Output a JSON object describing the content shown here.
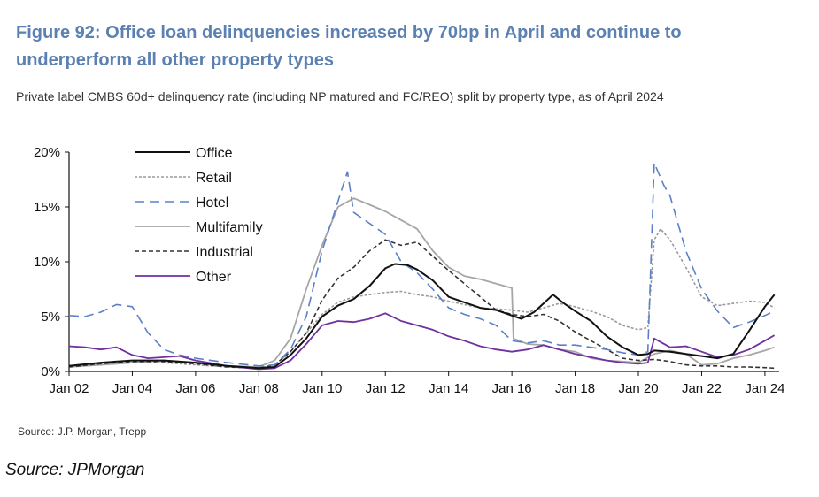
{
  "header": {
    "title": "Figure 92: Office loan delinquencies increased by 70bp in April and continue to underperform all other property types",
    "subtitle": "Private label CMBS 60d+ delinquency rate (including NP matured and FC/REO) split by property type, as of April 2024"
  },
  "footer": {
    "source_primary": "Source: J.P. Morgan, Trepp",
    "source_secondary": "Source: JPMorgan"
  },
  "chart_data": {
    "type": "line",
    "ylim": [
      0,
      20
    ],
    "xlim": [
      2002.0,
      2024.45
    ],
    "y_ticks": [
      {
        "value": 0,
        "label": "0%"
      },
      {
        "value": 5,
        "label": "5%"
      },
      {
        "value": 10,
        "label": "10%"
      },
      {
        "value": 15,
        "label": "15%"
      },
      {
        "value": 20,
        "label": "20%"
      }
    ],
    "x_ticks": [
      {
        "value": 2002,
        "label": "Jan 02"
      },
      {
        "value": 2004,
        "label": "Jan 04"
      },
      {
        "value": 2006,
        "label": "Jan 06"
      },
      {
        "value": 2008,
        "label": "Jan 08"
      },
      {
        "value": 2010,
        "label": "Jan 10"
      },
      {
        "value": 2012,
        "label": "Jan 12"
      },
      {
        "value": 2014,
        "label": "Jan 14"
      },
      {
        "value": 2016,
        "label": "Jan 16"
      },
      {
        "value": 2018,
        "label": "Jan 18"
      },
      {
        "value": 2020,
        "label": "Jan 20"
      },
      {
        "value": 2022,
        "label": "Jan 22"
      },
      {
        "value": 2024,
        "label": "Jan 24"
      }
    ],
    "grid": false,
    "legend_position": "top-left",
    "series": [
      {
        "name": "Office",
        "color": "#111111",
        "dash": "solid",
        "points": [
          [
            2002,
            0.5
          ],
          [
            2003,
            0.8
          ],
          [
            2004,
            1.0
          ],
          [
            2005,
            1.0
          ],
          [
            2006,
            0.8
          ],
          [
            2007,
            0.5
          ],
          [
            2008,
            0.3
          ],
          [
            2008.5,
            0.4
          ],
          [
            2009,
            1.5
          ],
          [
            2009.5,
            3.0
          ],
          [
            2010,
            5.0
          ],
          [
            2010.5,
            6.0
          ],
          [
            2011,
            6.6
          ],
          [
            2011.5,
            7.8
          ],
          [
            2012,
            9.4
          ],
          [
            2012.3,
            9.8
          ],
          [
            2012.7,
            9.7
          ],
          [
            2013,
            9.3
          ],
          [
            2013.5,
            8.3
          ],
          [
            2014,
            6.8
          ],
          [
            2014.5,
            6.3
          ],
          [
            2015,
            5.8
          ],
          [
            2015.5,
            5.6
          ],
          [
            2016,
            5.1
          ],
          [
            2016.3,
            4.8
          ],
          [
            2016.7,
            5.4
          ],
          [
            2017,
            6.2
          ],
          [
            2017.3,
            7.0
          ],
          [
            2017.6,
            6.3
          ],
          [
            2018,
            5.5
          ],
          [
            2018.5,
            4.6
          ],
          [
            2019,
            3.2
          ],
          [
            2019.5,
            2.2
          ],
          [
            2020,
            1.5
          ],
          [
            2020.3,
            1.6
          ],
          [
            2020.5,
            1.9
          ],
          [
            2021,
            1.8
          ],
          [
            2021.5,
            1.6
          ],
          [
            2022,
            1.4
          ],
          [
            2022.5,
            1.2
          ],
          [
            2023,
            1.6
          ],
          [
            2023.5,
            3.7
          ],
          [
            2024,
            5.9
          ],
          [
            2024.3,
            7.0
          ]
        ]
      },
      {
        "name": "Retail",
        "color": "#9a9a9a",
        "dash": "dotted",
        "points": [
          [
            2002,
            0.5
          ],
          [
            2003,
            0.7
          ],
          [
            2004,
            0.8
          ],
          [
            2005,
            0.8
          ],
          [
            2006,
            0.6
          ],
          [
            2007,
            0.4
          ],
          [
            2008,
            0.3
          ],
          [
            2008.5,
            0.6
          ],
          [
            2009,
            1.8
          ],
          [
            2009.5,
            3.5
          ],
          [
            2010,
            5.2
          ],
          [
            2010.5,
            6.3
          ],
          [
            2011,
            6.8
          ],
          [
            2011.5,
            7.0
          ],
          [
            2012,
            7.2
          ],
          [
            2012.5,
            7.3
          ],
          [
            2013,
            7.0
          ],
          [
            2013.5,
            6.8
          ],
          [
            2014,
            6.4
          ],
          [
            2014.5,
            6.1
          ],
          [
            2015,
            5.8
          ],
          [
            2015.5,
            5.7
          ],
          [
            2016,
            5.6
          ],
          [
            2016.5,
            5.4
          ],
          [
            2017,
            5.8
          ],
          [
            2017.5,
            6.2
          ],
          [
            2018,
            5.9
          ],
          [
            2018.5,
            5.5
          ],
          [
            2019,
            5.0
          ],
          [
            2019.5,
            4.2
          ],
          [
            2020,
            3.8
          ],
          [
            2020.3,
            4.0
          ],
          [
            2020.5,
            12.0
          ],
          [
            2020.7,
            13.0
          ],
          [
            2021,
            12.0
          ],
          [
            2021.5,
            9.5
          ],
          [
            2022,
            6.8
          ],
          [
            2022.5,
            6.0
          ],
          [
            2023,
            6.2
          ],
          [
            2023.5,
            6.4
          ],
          [
            2024,
            6.3
          ],
          [
            2024.3,
            5.8
          ]
        ]
      },
      {
        "name": "Hotel",
        "color": "#5b80c8",
        "dash": "longdash",
        "points": [
          [
            2002,
            5.1
          ],
          [
            2002.5,
            5.0
          ],
          [
            2003,
            5.4
          ],
          [
            2003.5,
            6.1
          ],
          [
            2004,
            5.9
          ],
          [
            2004.5,
            3.5
          ],
          [
            2005,
            2.0
          ],
          [
            2005.5,
            1.5
          ],
          [
            2006,
            1.2
          ],
          [
            2007,
            0.8
          ],
          [
            2008,
            0.5
          ],
          [
            2008.5,
            0.6
          ],
          [
            2009,
            2.0
          ],
          [
            2009.5,
            5.0
          ],
          [
            2010,
            11.0
          ],
          [
            2010.5,
            15.5
          ],
          [
            2010.8,
            18.2
          ],
          [
            2011,
            14.5
          ],
          [
            2011.5,
            13.5
          ],
          [
            2012,
            12.5
          ],
          [
            2012.5,
            10.0
          ],
          [
            2013,
            9.0
          ],
          [
            2013.5,
            7.5
          ],
          [
            2014,
            5.8
          ],
          [
            2014.5,
            5.2
          ],
          [
            2015,
            4.8
          ],
          [
            2015.5,
            4.2
          ],
          [
            2016,
            2.8
          ],
          [
            2016.5,
            2.6
          ],
          [
            2017,
            2.8
          ],
          [
            2017.5,
            2.4
          ],
          [
            2018,
            2.4
          ],
          [
            2018.5,
            2.2
          ],
          [
            2019,
            2.0
          ],
          [
            2019.5,
            1.7
          ],
          [
            2020,
            1.5
          ],
          [
            2020.3,
            1.8
          ],
          [
            2020.5,
            19.0
          ],
          [
            2020.8,
            17.0
          ],
          [
            2021,
            16.0
          ],
          [
            2021.5,
            11.0
          ],
          [
            2022,
            7.5
          ],
          [
            2022.5,
            5.5
          ],
          [
            2023,
            4.0
          ],
          [
            2023.5,
            4.5
          ],
          [
            2024,
            5.1
          ],
          [
            2024.3,
            5.5
          ]
        ]
      },
      {
        "name": "Multifamily",
        "color": "#a6a6a6",
        "dash": "solid",
        "points": [
          [
            2002,
            0.4
          ],
          [
            2003,
            0.6
          ],
          [
            2004,
            0.8
          ],
          [
            2005,
            1.0
          ],
          [
            2006,
            0.8
          ],
          [
            2007,
            0.5
          ],
          [
            2008,
            0.4
          ],
          [
            2008.5,
            1.0
          ],
          [
            2009,
            3.0
          ],
          [
            2009.5,
            7.5
          ],
          [
            2010,
            11.5
          ],
          [
            2010.5,
            15.0
          ],
          [
            2011,
            15.8
          ],
          [
            2011.5,
            15.2
          ],
          [
            2012,
            14.6
          ],
          [
            2012.5,
            13.8
          ],
          [
            2013,
            13.0
          ],
          [
            2013.5,
            11.0
          ],
          [
            2014,
            9.5
          ],
          [
            2014.5,
            8.7
          ],
          [
            2015,
            8.4
          ],
          [
            2015.5,
            8.0
          ],
          [
            2016,
            7.6
          ],
          [
            2016.05,
            3.0
          ],
          [
            2016.5,
            2.5
          ],
          [
            2017,
            2.4
          ],
          [
            2017.5,
            2.0
          ],
          [
            2018,
            1.8
          ],
          [
            2018.5,
            1.2
          ],
          [
            2019,
            1.0
          ],
          [
            2019.5,
            0.9
          ],
          [
            2020,
            0.8
          ],
          [
            2020.5,
            1.6
          ],
          [
            2021,
            1.9
          ],
          [
            2021.5,
            1.6
          ],
          [
            2022,
            0.6
          ],
          [
            2022.5,
            0.7
          ],
          [
            2023,
            1.2
          ],
          [
            2023.5,
            1.5
          ],
          [
            2024,
            1.9
          ],
          [
            2024.3,
            2.2
          ]
        ]
      },
      {
        "name": "Industrial",
        "color": "#333333",
        "dash": "dashed",
        "points": [
          [
            2002,
            0.4
          ],
          [
            2003,
            0.7
          ],
          [
            2004,
            0.9
          ],
          [
            2005,
            0.9
          ],
          [
            2006,
            0.7
          ],
          [
            2007,
            0.4
          ],
          [
            2008,
            0.3
          ],
          [
            2008.5,
            0.6
          ],
          [
            2009,
            1.8
          ],
          [
            2009.5,
            3.5
          ],
          [
            2010,
            6.5
          ],
          [
            2010.5,
            8.5
          ],
          [
            2011,
            9.5
          ],
          [
            2011.5,
            11.0
          ],
          [
            2012,
            12.0
          ],
          [
            2012.5,
            11.5
          ],
          [
            2013,
            11.8
          ],
          [
            2013.5,
            10.5
          ],
          [
            2014,
            9.2
          ],
          [
            2014.5,
            8.0
          ],
          [
            2015,
            6.8
          ],
          [
            2015.5,
            5.6
          ],
          [
            2016,
            5.2
          ],
          [
            2016.5,
            5.0
          ],
          [
            2017,
            5.2
          ],
          [
            2017.5,
            4.6
          ],
          [
            2018,
            3.6
          ],
          [
            2018.5,
            2.8
          ],
          [
            2019,
            2.0
          ],
          [
            2019.5,
            1.2
          ],
          [
            2020,
            1.0
          ],
          [
            2020.5,
            1.1
          ],
          [
            2021,
            0.9
          ],
          [
            2021.5,
            0.6
          ],
          [
            2022,
            0.5
          ],
          [
            2022.5,
            0.5
          ],
          [
            2023,
            0.4
          ],
          [
            2023.5,
            0.4
          ],
          [
            2024,
            0.35
          ],
          [
            2024.3,
            0.3
          ]
        ]
      },
      {
        "name": "Other",
        "color": "#7030a0",
        "dash": "solid",
        "points": [
          [
            2002,
            2.3
          ],
          [
            2002.5,
            2.2
          ],
          [
            2003,
            2.0
          ],
          [
            2003.5,
            2.2
          ],
          [
            2004,
            1.5
          ],
          [
            2004.5,
            1.2
          ],
          [
            2005,
            1.3
          ],
          [
            2005.5,
            1.4
          ],
          [
            2006,
            1.0
          ],
          [
            2007,
            0.5
          ],
          [
            2008,
            0.2
          ],
          [
            2008.5,
            0.3
          ],
          [
            2009,
            1.0
          ],
          [
            2009.5,
            2.5
          ],
          [
            2010,
            4.2
          ],
          [
            2010.5,
            4.6
          ],
          [
            2011,
            4.5
          ],
          [
            2011.5,
            4.8
          ],
          [
            2012,
            5.3
          ],
          [
            2012.5,
            4.6
          ],
          [
            2013,
            4.2
          ],
          [
            2013.5,
            3.8
          ],
          [
            2014,
            3.2
          ],
          [
            2014.5,
            2.8
          ],
          [
            2015,
            2.3
          ],
          [
            2015.5,
            2.0
          ],
          [
            2016,
            1.8
          ],
          [
            2016.5,
            2.0
          ],
          [
            2017,
            2.4
          ],
          [
            2017.5,
            2.0
          ],
          [
            2018,
            1.6
          ],
          [
            2018.5,
            1.3
          ],
          [
            2019,
            1.0
          ],
          [
            2019.5,
            0.8
          ],
          [
            2020,
            0.7
          ],
          [
            2020.3,
            0.8
          ],
          [
            2020.5,
            3.0
          ],
          [
            2021,
            2.2
          ],
          [
            2021.5,
            2.3
          ],
          [
            2022,
            1.8
          ],
          [
            2022.5,
            1.3
          ],
          [
            2023,
            1.5
          ],
          [
            2023.5,
            2.0
          ],
          [
            2024,
            2.8
          ],
          [
            2024.3,
            3.3
          ]
        ]
      }
    ]
  }
}
